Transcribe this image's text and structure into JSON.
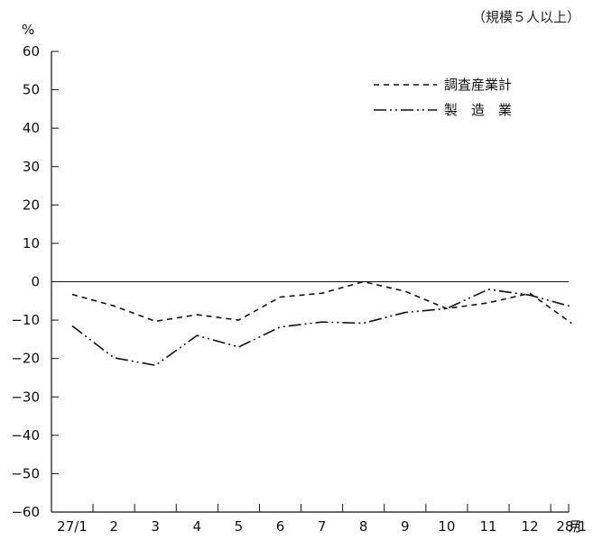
{
  "chart_data": {
    "type": "line",
    "note": "（規模５人以上）",
    "y_unit": "%",
    "x_unit": "月",
    "categories": [
      "27/1",
      "2",
      "3",
      "4",
      "5",
      "6",
      "7",
      "8",
      "9",
      "10",
      "11",
      "12",
      "28/1"
    ],
    "ylim": [
      -60,
      60
    ],
    "yticks": [
      60,
      50,
      40,
      30,
      20,
      10,
      0,
      -10,
      -20,
      -30,
      -40,
      -50,
      -60
    ],
    "legend_position": "top-right",
    "series": [
      {
        "name": "調査産業計",
        "style": "dashed",
        "values": [
          -3.3,
          -6.3,
          -10.3,
          -8.6,
          -10.0,
          -4.0,
          -3.0,
          0.0,
          -2.5,
          -7.0,
          -5.5,
          -3.0,
          -10.8
        ]
      },
      {
        "name": "製　造　業",
        "style": "dash-dot-dot",
        "values": [
          -11.5,
          -19.8,
          -21.8,
          -14.0,
          -17.0,
          -11.8,
          -10.5,
          -10.8,
          -8.0,
          -7.0,
          -2.0,
          -3.5,
          -6.5
        ]
      }
    ]
  }
}
